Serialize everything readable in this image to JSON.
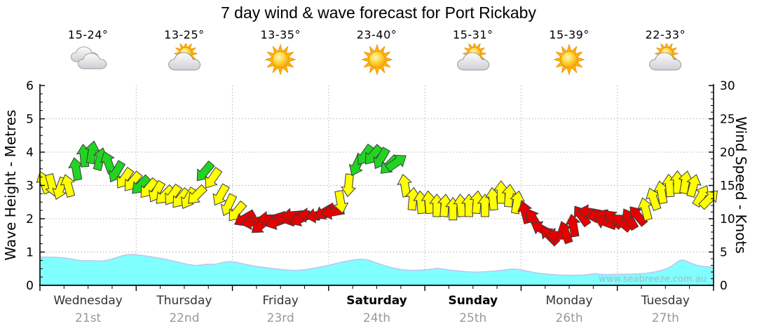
{
  "title": "7 day wind & wave forecast for Port Rickaby",
  "watermark": "www.seabreeze.com.au",
  "axes": {
    "left_label": "Wave Height - Metres",
    "right_label": "Wind Speed - Knots",
    "left_ticks": [
      0,
      1,
      2,
      3,
      4,
      5,
      6
    ],
    "right_ticks": [
      0,
      5,
      10,
      15,
      20,
      25,
      30
    ],
    "left_range": [
      0,
      6
    ],
    "right_range": [
      0,
      30
    ]
  },
  "days": [
    {
      "name": "Wednesday",
      "date": "21st",
      "temp": "15-24°",
      "icon": "cloudy",
      "weekend": false
    },
    {
      "name": "Thursday",
      "date": "22nd",
      "temp": "13-25°",
      "icon": "partly-cloudy",
      "weekend": false
    },
    {
      "name": "Friday",
      "date": "23rd",
      "temp": "13-35°",
      "icon": "sunny",
      "weekend": false
    },
    {
      "name": "Saturday",
      "date": "24th",
      "temp": "23-40°",
      "icon": "sunny",
      "weekend": true
    },
    {
      "name": "Sunday",
      "date": "25th",
      "temp": "15-31°",
      "icon": "partly-cloudy",
      "weekend": true
    },
    {
      "name": "Monday",
      "date": "26th",
      "temp": "15-39°",
      "icon": "sunny",
      "weekend": false
    },
    {
      "name": "Tuesday",
      "date": "27th",
      "temp": "22-33°",
      "icon": "partly-cloudy",
      "weekend": false
    }
  ],
  "colors": {
    "wind_green": "#22D422",
    "wind_yellow": "#FFFF00",
    "wind_red": "#E60000",
    "arrow_outline": "#3C3C3C",
    "wave_fill": "#80FFFF",
    "wave_edge": "#BCC8EE",
    "grid": "#B4B4B4",
    "axis": "#000000",
    "day_label": "#333333",
    "day_label_weekend": "#000000",
    "date_label": "#999999",
    "watermark": "#A6AEB8"
  },
  "chart_data": {
    "type": "combo",
    "x_unit": "days",
    "x_range": [
      0,
      7
    ],
    "grid": {
      "horizontal": "dotted every 1 m / 5 kn",
      "vertical": "dotted at day boundaries"
    },
    "legend": "none",
    "series": [
      {
        "name": "Wave Height",
        "type": "area",
        "axis": "left",
        "unit": "m",
        "point_format": [
          "t_days",
          "metres"
        ],
        "points": [
          [
            0,
            0.85
          ],
          [
            0.09,
            0.85
          ],
          [
            0.23,
            0.83
          ],
          [
            0.34,
            0.79
          ],
          [
            0.43,
            0.73
          ],
          [
            0.52,
            0.75
          ],
          [
            0.63,
            0.72
          ],
          [
            0.72,
            0.76
          ],
          [
            0.82,
            0.86
          ],
          [
            0.91,
            0.93
          ],
          [
            1.0,
            0.92
          ],
          [
            1.13,
            0.87
          ],
          [
            1.29,
            0.79
          ],
          [
            1.42,
            0.71
          ],
          [
            1.54,
            0.62
          ],
          [
            1.65,
            0.59
          ],
          [
            1.73,
            0.64
          ],
          [
            1.81,
            0.62
          ],
          [
            1.91,
            0.7
          ],
          [
            2.0,
            0.72
          ],
          [
            2.13,
            0.63
          ],
          [
            2.27,
            0.56
          ],
          [
            2.42,
            0.5
          ],
          [
            2.56,
            0.46
          ],
          [
            2.69,
            0.44
          ],
          [
            2.82,
            0.5
          ],
          [
            2.96,
            0.57
          ],
          [
            3.11,
            0.68
          ],
          [
            3.26,
            0.77
          ],
          [
            3.39,
            0.79
          ],
          [
            3.51,
            0.66
          ],
          [
            3.66,
            0.52
          ],
          [
            3.8,
            0.45
          ],
          [
            3.95,
            0.45
          ],
          [
            4.06,
            0.48
          ],
          [
            4.13,
            0.52
          ],
          [
            4.24,
            0.46
          ],
          [
            4.38,
            0.42
          ],
          [
            4.53,
            0.39
          ],
          [
            4.68,
            0.42
          ],
          [
            4.78,
            0.44
          ],
          [
            4.93,
            0.5
          ],
          [
            5.04,
            0.44
          ],
          [
            5.18,
            0.36
          ],
          [
            5.37,
            0.31
          ],
          [
            5.55,
            0.3
          ],
          [
            5.69,
            0.31
          ],
          [
            5.77,
            0.36
          ],
          [
            5.84,
            0.32
          ],
          [
            5.99,
            0.33
          ],
          [
            6.17,
            0.34
          ],
          [
            6.31,
            0.36
          ],
          [
            6.46,
            0.44
          ],
          [
            6.57,
            0.57
          ],
          [
            6.66,
            0.8
          ],
          [
            6.75,
            0.68
          ],
          [
            6.85,
            0.58
          ],
          [
            6.96,
            0.55
          ],
          [
            7.0,
            0.55
          ]
        ]
      },
      {
        "name": "Wind Speed",
        "type": "wind-arrows",
        "axis": "right",
        "unit": "knots",
        "point_format": [
          "t_days",
          "knots",
          "direction_deg",
          "category"
        ],
        "categories": {
          "g": "green",
          "y": "yellow",
          "r": "red"
        },
        "points": [
          [
            0.042,
            15.5,
            -20,
            "y"
          ],
          [
            0.125,
            15,
            165,
            "y"
          ],
          [
            0.208,
            14.5,
            -160,
            "y"
          ],
          [
            0.292,
            15,
            -15,
            "y"
          ],
          [
            0.375,
            17.5,
            -10,
            "g"
          ],
          [
            0.458,
            19.5,
            -5,
            "g"
          ],
          [
            0.542,
            20,
            10,
            "g"
          ],
          [
            0.625,
            19,
            15,
            "g"
          ],
          [
            0.708,
            18.5,
            -20,
            "g"
          ],
          [
            0.792,
            17,
            -150,
            "g"
          ],
          [
            0.875,
            16,
            -145,
            "y"
          ],
          [
            0.958,
            15.5,
            -140,
            "y"
          ],
          [
            1.042,
            15,
            -135,
            "g"
          ],
          [
            1.125,
            14.5,
            -140,
            "y"
          ],
          [
            1.208,
            14,
            -150,
            "y"
          ],
          [
            1.292,
            13.5,
            -135,
            "y"
          ],
          [
            1.375,
            13.5,
            -145,
            "y"
          ],
          [
            1.458,
            13,
            -140,
            "y"
          ],
          [
            1.542,
            13,
            -150,
            "y"
          ],
          [
            1.625,
            13.5,
            -135,
            "y"
          ],
          [
            1.708,
            17,
            -140,
            "g"
          ],
          [
            1.792,
            16,
            -145,
            "y"
          ],
          [
            1.875,
            13.5,
            -150,
            "y"
          ],
          [
            1.958,
            12,
            -155,
            "y"
          ],
          [
            2.042,
            11,
            -140,
            "y"
          ],
          [
            2.125,
            10,
            -120,
            "r"
          ],
          [
            2.208,
            9.5,
            -100,
            "r"
          ],
          [
            2.292,
            9,
            -130,
            "r"
          ],
          [
            2.375,
            10,
            -90,
            "r"
          ],
          [
            2.458,
            9.5,
            -110,
            "r"
          ],
          [
            2.542,
            10,
            -70,
            "r"
          ],
          [
            2.625,
            10.5,
            -95,
            "r"
          ],
          [
            2.708,
            10,
            -115,
            "r"
          ],
          [
            2.792,
            10.5,
            -85,
            "r"
          ],
          [
            2.875,
            10.5,
            -100,
            "r"
          ],
          [
            2.958,
            11,
            -120,
            "r"
          ],
          [
            3.042,
            11,
            -100,
            "r"
          ],
          [
            3.125,
            12.5,
            170,
            "y"
          ],
          [
            3.208,
            15,
            185,
            "y"
          ],
          [
            3.292,
            18,
            205,
            "g"
          ],
          [
            3.375,
            19.5,
            215,
            "g"
          ],
          [
            3.458,
            19.5,
            220,
            "g"
          ],
          [
            3.542,
            19,
            210,
            "g"
          ],
          [
            3.625,
            18,
            225,
            "g"
          ],
          [
            3.708,
            18.5,
            55,
            "g"
          ],
          [
            3.792,
            15,
            -10,
            "y"
          ],
          [
            3.875,
            13,
            5,
            "y"
          ],
          [
            3.958,
            12.5,
            -5,
            "y"
          ],
          [
            4.042,
            12.5,
            -5,
            "y"
          ],
          [
            4.125,
            12,
            0,
            "y"
          ],
          [
            4.208,
            12,
            5,
            "y"
          ],
          [
            4.292,
            11.5,
            0,
            "y"
          ],
          [
            4.375,
            12,
            -5,
            "y"
          ],
          [
            4.458,
            12,
            0,
            "y"
          ],
          [
            4.542,
            12.5,
            5,
            "y"
          ],
          [
            4.625,
            12,
            0,
            "y"
          ],
          [
            4.708,
            13,
            -5,
            "y"
          ],
          [
            4.792,
            14,
            0,
            "y"
          ],
          [
            4.875,
            13.5,
            5,
            "y"
          ],
          [
            4.958,
            12.5,
            10,
            "y"
          ],
          [
            5.042,
            11,
            -15,
            "r"
          ],
          [
            5.125,
            10,
            -30,
            "r"
          ],
          [
            5.208,
            8.5,
            -60,
            "r"
          ],
          [
            5.292,
            7.5,
            -45,
            "r"
          ],
          [
            5.375,
            7.5,
            -90,
            "r"
          ],
          [
            5.458,
            8,
            -20,
            "r"
          ],
          [
            5.542,
            9,
            -10,
            "r"
          ],
          [
            5.625,
            10.5,
            -35,
            "r"
          ],
          [
            5.708,
            11,
            -80,
            "r"
          ],
          [
            5.792,
            10.5,
            -100,
            "r"
          ],
          [
            5.875,
            9.5,
            -70,
            "r"
          ],
          [
            5.958,
            10,
            -45,
            "r"
          ],
          [
            6.042,
            9.5,
            -50,
            "r"
          ],
          [
            6.125,
            10,
            -30,
            "r"
          ],
          [
            6.208,
            10.5,
            -40,
            "r"
          ],
          [
            6.292,
            11.5,
            -15,
            "y"
          ],
          [
            6.375,
            13,
            -20,
            "y"
          ],
          [
            6.458,
            14,
            -10,
            "y"
          ],
          [
            6.542,
            15,
            -5,
            "y"
          ],
          [
            6.625,
            15.5,
            0,
            "y"
          ],
          [
            6.708,
            15.5,
            10,
            "y"
          ],
          [
            6.792,
            15,
            15,
            "y"
          ],
          [
            6.875,
            13.5,
            30,
            "y"
          ],
          [
            6.958,
            13,
            45,
            "y"
          ]
        ]
      }
    ]
  }
}
